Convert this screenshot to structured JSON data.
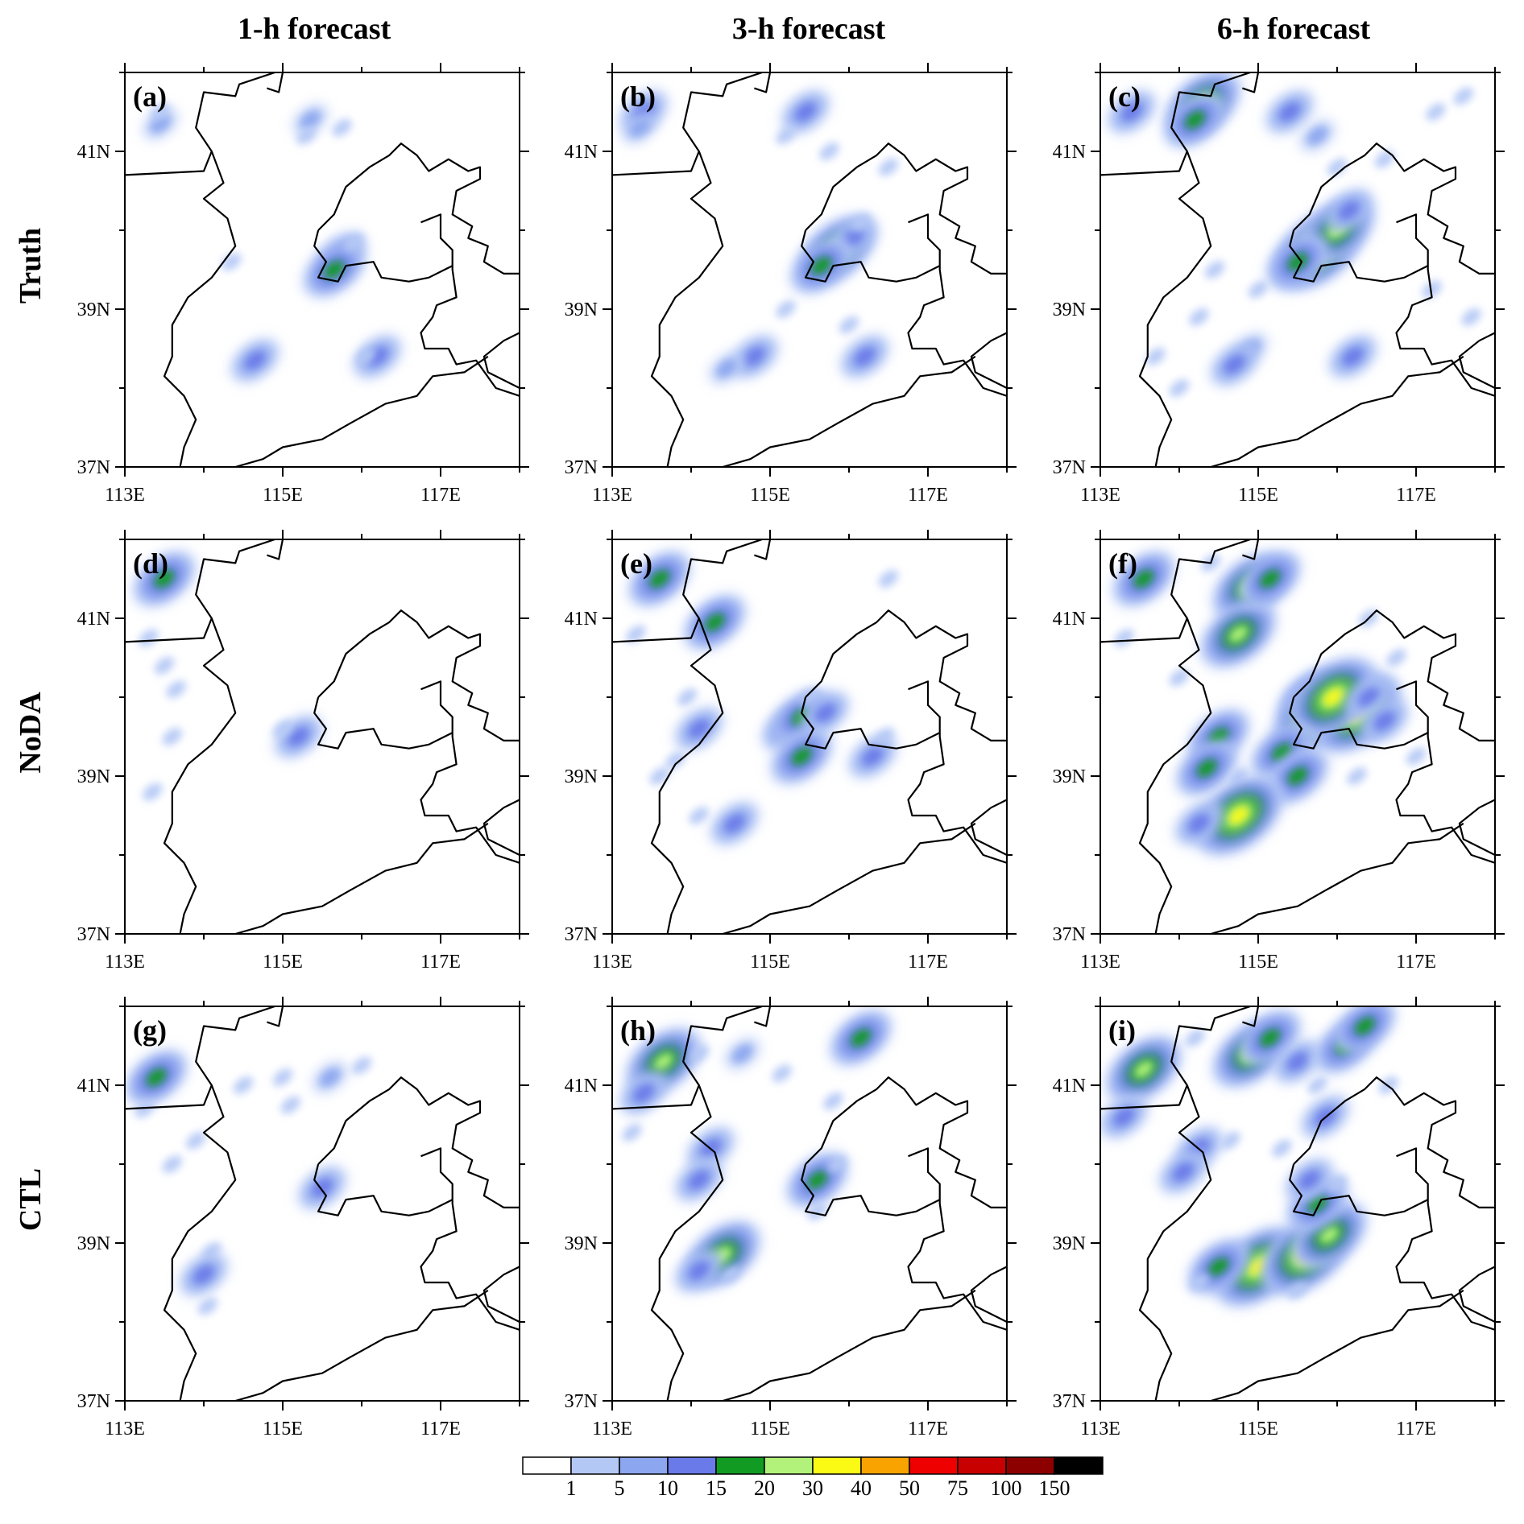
{
  "columns": [
    "1-h forecast",
    "3-h forecast",
    "6-h forecast"
  ],
  "rows": [
    "Truth",
    "NoDA",
    "CTL"
  ],
  "panel_labels": [
    "(a)",
    "(b)",
    "(c)",
    "(d)",
    "(e)",
    "(f)",
    "(g)",
    "(h)",
    "(i)"
  ],
  "x_ticks": [
    "113E",
    "115E",
    "117E"
  ],
  "y_ticks": [
    "41N",
    "39N",
    "37N"
  ],
  "colorbar": {
    "labels": [
      "1",
      "5",
      "10",
      "15",
      "20",
      "30",
      "40",
      "50",
      "75",
      "100",
      "150"
    ],
    "colors": [
      "#ffffff",
      "#b4c8f5",
      "#8ca6ef",
      "#6a7ae8",
      "#119b22",
      "#b3f27a",
      "#fafa14",
      "#f9a300",
      "#ee0000",
      "#c80000",
      "#8c0000",
      "#000000"
    ]
  },
  "panels": [
    {
      "cells": [
        [
          0.09,
          0.13,
          2
        ],
        [
          0.09,
          0.1,
          1
        ],
        [
          0.47,
          0.12,
          2
        ],
        [
          0.46,
          0.16,
          1
        ],
        [
          0.55,
          0.14,
          1
        ],
        [
          0.55,
          0.46,
          3
        ],
        [
          0.53,
          0.5,
          4
        ],
        [
          0.58,
          0.43,
          1
        ],
        [
          0.27,
          0.48,
          1
        ],
        [
          0.33,
          0.73,
          3
        ],
        [
          0.64,
          0.72,
          3
        ],
        [
          0.61,
          0.72,
          1
        ]
      ]
    },
    {
      "cells": [
        [
          0.08,
          0.1,
          3
        ],
        [
          0.07,
          0.14,
          2
        ],
        [
          0.49,
          0.1,
          3
        ],
        [
          0.44,
          0.16,
          1
        ],
        [
          0.55,
          0.2,
          1
        ],
        [
          0.7,
          0.24,
          1
        ],
        [
          0.57,
          0.45,
          5
        ],
        [
          0.61,
          0.42,
          3
        ],
        [
          0.63,
          0.38,
          1
        ],
        [
          0.53,
          0.49,
          4
        ],
        [
          0.44,
          0.6,
          1
        ],
        [
          0.36,
          0.72,
          3
        ],
        [
          0.29,
          0.75,
          2
        ],
        [
          0.64,
          0.72,
          3
        ],
        [
          0.6,
          0.64,
          1
        ]
      ]
    },
    {
      "cells": [
        [
          0.08,
          0.1,
          3
        ],
        [
          0.26,
          0.08,
          5
        ],
        [
          0.24,
          0.12,
          4
        ],
        [
          0.48,
          0.1,
          3
        ],
        [
          0.55,
          0.16,
          2
        ],
        [
          0.6,
          0.24,
          1
        ],
        [
          0.72,
          0.22,
          1
        ],
        [
          0.85,
          0.1,
          1
        ],
        [
          0.92,
          0.06,
          1
        ],
        [
          0.55,
          0.45,
          6
        ],
        [
          0.6,
          0.4,
          5
        ],
        [
          0.63,
          0.35,
          3
        ],
        [
          0.5,
          0.48,
          4
        ],
        [
          0.4,
          0.55,
          1
        ],
        [
          0.29,
          0.5,
          1
        ],
        [
          0.25,
          0.62,
          1
        ],
        [
          0.38,
          0.7,
          2
        ],
        [
          0.34,
          0.74,
          3
        ],
        [
          0.64,
          0.72,
          3
        ],
        [
          0.14,
          0.72,
          1
        ],
        [
          0.2,
          0.8,
          1
        ],
        [
          0.84,
          0.55,
          1
        ],
        [
          0.94,
          0.62,
          1
        ]
      ]
    },
    {
      "cells": [
        [
          0.1,
          0.1,
          4
        ],
        [
          0.06,
          0.25,
          1
        ],
        [
          0.1,
          0.32,
          1
        ],
        [
          0.13,
          0.38,
          1
        ],
        [
          0.12,
          0.5,
          1
        ],
        [
          0.07,
          0.64,
          1
        ],
        [
          0.44,
          0.5,
          3
        ],
        [
          0.4,
          0.48,
          1
        ]
      ]
    },
    {
      "cells": [
        [
          0.12,
          0.1,
          4
        ],
        [
          0.06,
          0.24,
          1
        ],
        [
          0.26,
          0.21,
          4
        ],
        [
          0.19,
          0.4,
          1
        ],
        [
          0.22,
          0.48,
          3
        ],
        [
          0.12,
          0.6,
          1
        ],
        [
          0.16,
          0.56,
          1
        ],
        [
          0.44,
          0.48,
          3
        ],
        [
          0.48,
          0.45,
          4
        ],
        [
          0.5,
          0.4,
          1
        ],
        [
          0.54,
          0.44,
          3
        ],
        [
          0.48,
          0.55,
          4
        ],
        [
          0.66,
          0.55,
          3
        ],
        [
          0.69,
          0.5,
          1
        ],
        [
          0.31,
          0.72,
          3
        ],
        [
          0.22,
          0.7,
          1
        ],
        [
          0.7,
          0.1,
          1
        ]
      ]
    },
    {
      "cells": [
        [
          0.11,
          0.1,
          4
        ],
        [
          0.06,
          0.25,
          1
        ],
        [
          0.38,
          0.12,
          5
        ],
        [
          0.35,
          0.24,
          5
        ],
        [
          0.43,
          0.1,
          4
        ],
        [
          0.28,
          0.06,
          1
        ],
        [
          0.53,
          0.4,
          4
        ],
        [
          0.55,
          0.44,
          6
        ],
        [
          0.65,
          0.44,
          6
        ],
        [
          0.59,
          0.4,
          6
        ],
        [
          0.68,
          0.4,
          3
        ],
        [
          0.72,
          0.46,
          3
        ],
        [
          0.3,
          0.5,
          4
        ],
        [
          0.27,
          0.58,
          4
        ],
        [
          0.35,
          0.6,
          1
        ],
        [
          0.46,
          0.54,
          4
        ],
        [
          0.5,
          0.6,
          4
        ],
        [
          0.35,
          0.7,
          6
        ],
        [
          0.25,
          0.72,
          3
        ],
        [
          0.65,
          0.6,
          1
        ],
        [
          0.75,
          0.3,
          1
        ],
        [
          0.68,
          0.2,
          1
        ],
        [
          0.8,
          0.55,
          1
        ],
        [
          0.2,
          0.35,
          1
        ]
      ]
    },
    {
      "cells": [
        [
          0.08,
          0.18,
          4
        ],
        [
          0.05,
          0.26,
          1
        ],
        [
          0.12,
          0.4,
          1
        ],
        [
          0.18,
          0.34,
          1
        ],
        [
          0.3,
          0.2,
          1
        ],
        [
          0.4,
          0.18,
          1
        ],
        [
          0.52,
          0.18,
          2
        ],
        [
          0.6,
          0.15,
          1
        ],
        [
          0.42,
          0.25,
          1
        ],
        [
          0.5,
          0.46,
          3
        ],
        [
          0.22,
          0.62,
          1
        ],
        [
          0.2,
          0.68,
          3
        ],
        [
          0.21,
          0.76,
          1
        ]
      ]
    },
    {
      "cells": [
        [
          0.13,
          0.14,
          5
        ],
        [
          0.08,
          0.22,
          3
        ],
        [
          0.05,
          0.32,
          1
        ],
        [
          0.22,
          0.12,
          1
        ],
        [
          0.33,
          0.12,
          2
        ],
        [
          0.43,
          0.17,
          1
        ],
        [
          0.63,
          0.08,
          4
        ],
        [
          0.56,
          0.24,
          1
        ],
        [
          0.25,
          0.36,
          3
        ],
        [
          0.22,
          0.44,
          3
        ],
        [
          0.32,
          0.58,
          1
        ],
        [
          0.28,
          0.63,
          5
        ],
        [
          0.22,
          0.67,
          3
        ],
        [
          0.3,
          0.68,
          1
        ],
        [
          0.52,
          0.44,
          4
        ],
        [
          0.57,
          0.4,
          1
        ],
        [
          0.52,
          0.52,
          1
        ]
      ]
    },
    {
      "cells": [
        [
          0.11,
          0.16,
          5
        ],
        [
          0.06,
          0.28,
          3
        ],
        [
          0.24,
          0.08,
          1
        ],
        [
          0.38,
          0.12,
          5
        ],
        [
          0.43,
          0.08,
          4
        ],
        [
          0.5,
          0.14,
          3
        ],
        [
          0.55,
          0.2,
          1
        ],
        [
          0.62,
          0.1,
          4
        ],
        [
          0.67,
          0.05,
          4
        ],
        [
          0.73,
          0.2,
          1
        ],
        [
          0.57,
          0.28,
          3
        ],
        [
          0.25,
          0.36,
          3
        ],
        [
          0.21,
          0.42,
          3
        ],
        [
          0.33,
          0.34,
          1
        ],
        [
          0.46,
          0.36,
          1
        ],
        [
          0.4,
          0.66,
          6
        ],
        [
          0.52,
          0.63,
          6
        ],
        [
          0.58,
          0.58,
          5
        ],
        [
          0.55,
          0.5,
          4
        ],
        [
          0.53,
          0.44,
          3
        ],
        [
          0.3,
          0.66,
          4
        ],
        [
          0.25,
          0.7,
          1
        ],
        [
          0.5,
          0.72,
          1
        ],
        [
          0.6,
          0.45,
          1
        ]
      ]
    }
  ]
}
